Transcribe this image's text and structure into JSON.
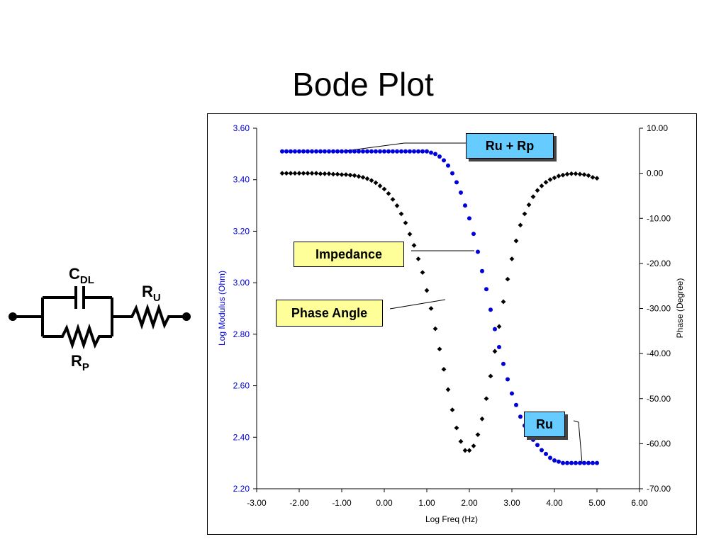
{
  "slide": {
    "title": "Bode Plot"
  },
  "circuit": {
    "labels": {
      "cdl_main": "C",
      "cdl_sub": "DL",
      "ru_main": "R",
      "ru_sub": "U",
      "rp_main": "R",
      "rp_sub": "P"
    }
  },
  "callouts": {
    "ru_rp": "Ru + Rp",
    "impedance": "Impedance",
    "phase_angle": "Phase Angle",
    "ru": "Ru"
  },
  "colors": {
    "modulus": "#0000dd",
    "phase": "#000000",
    "callout_blue": "#66ccff",
    "callout_yellow": "#ffff99"
  },
  "chart_data": {
    "type": "scatter",
    "title": "",
    "xlabel": "Log Freq (Hz)",
    "ylabel": "Log Modulus  (Ohm)",
    "y2label": "Phase (Degree)",
    "xlim": [
      -3,
      6
    ],
    "ylim": [
      2.2,
      3.6
    ],
    "y2lim": [
      -70,
      10
    ],
    "xticks": [
      "-3.00",
      "-2.00",
      "-1.00",
      "0.00",
      "1.00",
      "2.00",
      "3.00",
      "4.00",
      "5.00",
      "6.00"
    ],
    "yticks": [
      "2.20",
      "2.40",
      "2.60",
      "2.80",
      "3.00",
      "3.20",
      "3.40",
      "3.60"
    ],
    "y2ticks": [
      "-70.00",
      "-60.00",
      "-50.00",
      "-40.00",
      "-30.00",
      "-20.00",
      "-10.00",
      "0.00",
      "10.00"
    ],
    "grid": false,
    "series": [
      {
        "axis": "left",
        "marker": "circle",
        "color": "#0000dd",
        "x": [
          -2.4,
          -2.3,
          -2.2,
          -2.1,
          -2.0,
          -1.9,
          -1.8,
          -1.7,
          -1.6,
          -1.5,
          -1.4,
          -1.3,
          -1.2,
          -1.1,
          -1.0,
          -0.9,
          -0.8,
          -0.7,
          -0.6,
          -0.5,
          -0.4,
          -0.3,
          -0.2,
          -0.1,
          0.0,
          0.1,
          0.2,
          0.3,
          0.4,
          0.5,
          0.6,
          0.7,
          0.8,
          0.9,
          1.0,
          1.1,
          1.2,
          1.3,
          1.4,
          1.5,
          1.6,
          1.7,
          1.8,
          1.9,
          2.0,
          2.1,
          2.2,
          2.3,
          2.4,
          2.5,
          2.6,
          2.7,
          2.8,
          2.9,
          3.0,
          3.1,
          3.2,
          3.3,
          3.4,
          3.5,
          3.6,
          3.7,
          3.8,
          3.9,
          4.0,
          4.1,
          4.2,
          4.3,
          4.4,
          4.5,
          4.6,
          4.7,
          4.8,
          4.9,
          5.0
        ],
        "y": [
          3.51,
          3.51,
          3.51,
          3.51,
          3.51,
          3.51,
          3.51,
          3.51,
          3.51,
          3.51,
          3.51,
          3.51,
          3.51,
          3.51,
          3.51,
          3.51,
          3.51,
          3.51,
          3.51,
          3.51,
          3.51,
          3.51,
          3.51,
          3.51,
          3.51,
          3.51,
          3.51,
          3.51,
          3.51,
          3.51,
          3.51,
          3.51,
          3.51,
          3.51,
          3.51,
          3.505,
          3.5,
          3.49,
          3.475,
          3.455,
          3.425,
          3.39,
          3.35,
          3.3,
          3.25,
          3.19,
          3.12,
          3.045,
          2.975,
          2.895,
          2.82,
          2.75,
          2.685,
          2.625,
          2.57,
          2.525,
          2.48,
          2.445,
          2.415,
          2.39,
          2.37,
          2.35,
          2.335,
          2.32,
          2.31,
          2.305,
          2.3,
          2.3,
          2.3,
          2.3,
          2.3,
          2.3,
          2.3,
          2.3,
          2.3
        ]
      },
      {
        "axis": "right",
        "marker": "diamond",
        "color": "#000000",
        "x": [
          -2.4,
          -2.3,
          -2.2,
          -2.1,
          -2.0,
          -1.9,
          -1.8,
          -1.7,
          -1.6,
          -1.5,
          -1.4,
          -1.3,
          -1.2,
          -1.1,
          -1.0,
          -0.9,
          -0.8,
          -0.7,
          -0.6,
          -0.5,
          -0.4,
          -0.3,
          -0.2,
          -0.1,
          0.0,
          0.1,
          0.2,
          0.3,
          0.4,
          0.5,
          0.6,
          0.7,
          0.8,
          0.9,
          1.0,
          1.1,
          1.2,
          1.3,
          1.4,
          1.5,
          1.6,
          1.7,
          1.8,
          1.9,
          2.0,
          2.1,
          2.2,
          2.3,
          2.4,
          2.5,
          2.6,
          2.7,
          2.8,
          2.9,
          3.0,
          3.1,
          3.2,
          3.3,
          3.4,
          3.5,
          3.6,
          3.7,
          3.8,
          3.9,
          4.0,
          4.1,
          4.2,
          4.3,
          4.4,
          4.5,
          4.6,
          4.7,
          4.8,
          4.9,
          5.0
        ],
        "y": [
          0.0,
          0.0,
          0.0,
          0.0,
          0.0,
          0.0,
          0.0,
          0.0,
          0.0,
          -0.1,
          -0.1,
          -0.1,
          -0.2,
          -0.2,
          -0.3,
          -0.3,
          -0.4,
          -0.5,
          -0.7,
          -0.9,
          -1.2,
          -1.6,
          -2.1,
          -2.8,
          -3.5,
          -4.5,
          -5.8,
          -7.2,
          -9.0,
          -11.0,
          -13.5,
          -16.0,
          -19.0,
          -22.0,
          -26.0,
          -30.0,
          -34.5,
          -39.0,
          -43.5,
          -48.0,
          -52.5,
          -56.5,
          -59.5,
          -61.5,
          -61.5,
          -60.5,
          -58.0,
          -54.5,
          -50.0,
          -45.0,
          -39.5,
          -34.0,
          -28.5,
          -23.5,
          -19.0,
          -15.0,
          -11.5,
          -9.0,
          -7.0,
          -5.2,
          -3.8,
          -2.8,
          -2.0,
          -1.4,
          -1.0,
          -0.6,
          -0.4,
          -0.2,
          -0.1,
          -0.1,
          -0.2,
          -0.3,
          -0.5,
          -0.9,
          -1.1
        ]
      }
    ]
  }
}
